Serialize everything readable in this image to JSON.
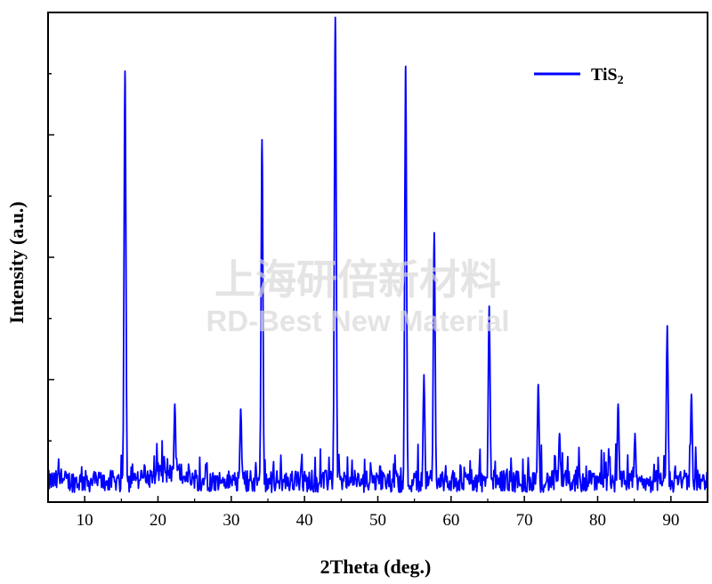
{
  "chart_data": {
    "type": "line",
    "xlabel": "2Theta (deg.)",
    "ylabel": "Intensity (a.u.)",
    "xlim": [
      5,
      95
    ],
    "ylim": [
      0,
      1
    ],
    "x_ticks": [
      10,
      20,
      30,
      40,
      50,
      60,
      70,
      80,
      90
    ],
    "legend": {
      "position": "top-right",
      "label_main": "TiS",
      "label_sub": "2"
    },
    "series": [
      {
        "name": "TiS2",
        "color": "#0000ff",
        "baseline": 0.05,
        "noise_amplitude": 0.05,
        "peaks": [
          {
            "x": 15.5,
            "y": 0.88
          },
          {
            "x": 22.3,
            "y": 0.2
          },
          {
            "x": 31.3,
            "y": 0.19
          },
          {
            "x": 34.2,
            "y": 0.74
          },
          {
            "x": 44.2,
            "y": 0.99
          },
          {
            "x": 53.8,
            "y": 0.89
          },
          {
            "x": 56.3,
            "y": 0.26
          },
          {
            "x": 57.7,
            "y": 0.55
          },
          {
            "x": 65.2,
            "y": 0.4
          },
          {
            "x": 71.9,
            "y": 0.24
          },
          {
            "x": 74.8,
            "y": 0.14
          },
          {
            "x": 82.8,
            "y": 0.2
          },
          {
            "x": 85.1,
            "y": 0.14
          },
          {
            "x": 89.5,
            "y": 0.36
          },
          {
            "x": 92.8,
            "y": 0.22
          }
        ]
      }
    ]
  },
  "watermark": {
    "line1": "上海研倍新材料",
    "line2": "RD-Best New Material"
  }
}
